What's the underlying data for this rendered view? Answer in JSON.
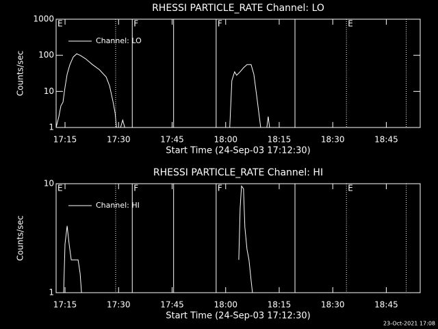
{
  "chart_data": [
    {
      "type": "line",
      "title": "RHESSI PARTICLE_RATE Channel: LO",
      "xlabel": "Start Time (24-Sep-03 17:12:30)",
      "ylabel": "Counts/sec",
      "log_y": true,
      "legend": "upper left",
      "xlim": [
        "17:12:30",
        "18:54:30"
      ],
      "ylim": [
        1,
        1000
      ],
      "xticks": [
        "17:15",
        "17:30",
        "17:45",
        "18:00",
        "18:15",
        "18:30",
        "18:45"
      ],
      "yticks": [
        1,
        10,
        100,
        1000
      ],
      "vertical_lines": [
        {
          "x": "17:29:10",
          "style": "dotted"
        },
        {
          "x": "17:33:50",
          "style": "solid"
        },
        {
          "x": "17:45:25",
          "style": "solid"
        },
        {
          "x": "17:57:20",
          "style": "solid"
        },
        {
          "x": "18:19:25",
          "style": "solid"
        },
        {
          "x": "18:33:50",
          "style": "dotted"
        },
        {
          "x": "18:50:35",
          "style": "dotted"
        }
      ],
      "annotations": [
        {
          "x": "17:12:30",
          "label": "E"
        },
        {
          "x": "17:33:50",
          "label": "F"
        },
        {
          "x": "17:57:20",
          "label": "F"
        },
        {
          "x": "18:33:50",
          "label": "E"
        }
      ],
      "x": [
        "17:12:30",
        "17:13:16",
        "17:13:51",
        "17:14:25",
        "17:15:00",
        "17:15:35",
        "17:16:21",
        "17:17:19",
        "17:18:16",
        "17:19:14",
        "17:20:46",
        "17:22:42",
        "17:24:37",
        "17:26:32",
        "17:27:30",
        "17:28:28",
        "17:29:02",
        "17:29:25",
        "17:30:00",
        "17:30:34",
        "17:31:09",
        "17:31:44",
        "17:50:00",
        "18:01:09",
        "18:01:44",
        "18:02:30",
        "18:03:05",
        "18:04:03",
        "18:05:00",
        "18:05:58",
        "18:07:07",
        "18:07:53",
        "18:08:39",
        "18:09:25",
        "18:09:48",
        "18:10:40",
        "18:11:32",
        "18:11:55",
        "18:12:18"
      ],
      "series": [
        {
          "name": "Channel: LO",
          "color": "#ffffff",
          "values": [
            1,
            2,
            4,
            5,
            13,
            30,
            55,
            90,
            110,
            100,
            80,
            55,
            40,
            25,
            14,
            5,
            2.5,
            1,
            null,
            1,
            1.6,
            1,
            null,
            1,
            20,
            35,
            28,
            35,
            45,
            55,
            55,
            30,
            8,
            2,
            1,
            null,
            1,
            2,
            1
          ]
        }
      ]
    },
    {
      "type": "line",
      "title": "RHESSI PARTICLE_RATE Channel: HI",
      "xlabel": "Start Time (24-Sep-03 17:12:30)",
      "ylabel": "Counts/sec",
      "log_y": true,
      "legend": "upper left",
      "xlim": [
        "17:12:30",
        "18:54:30"
      ],
      "ylim": [
        1,
        10
      ],
      "xticks": [
        "17:15",
        "17:30",
        "17:45",
        "18:00",
        "18:15",
        "18:30",
        "18:45"
      ],
      "yticks": [
        1,
        10
      ],
      "vertical_lines": [
        {
          "x": "17:29:10",
          "style": "dotted"
        },
        {
          "x": "17:33:50",
          "style": "solid"
        },
        {
          "x": "17:45:25",
          "style": "solid"
        },
        {
          "x": "17:57:20",
          "style": "solid"
        },
        {
          "x": "18:19:25",
          "style": "solid"
        },
        {
          "x": "18:33:50",
          "style": "dotted"
        },
        {
          "x": "18:50:35",
          "style": "dotted"
        }
      ],
      "annotations": [
        {
          "x": "17:12:30",
          "label": "E"
        },
        {
          "x": "17:33:50",
          "label": "F"
        },
        {
          "x": "17:57:20",
          "label": "F"
        },
        {
          "x": "18:33:50",
          "label": "E"
        }
      ],
      "x": [
        "17:14:37",
        "17:15:00",
        "17:15:35",
        "17:16:09",
        "17:16:44",
        "17:17:53",
        "17:18:39",
        "17:19:14",
        "17:19:37",
        "17:40:00",
        "18:03:40",
        "18:04:03",
        "18:04:26",
        "18:05:00",
        "18:05:23",
        "18:05:58",
        "18:06:32",
        "18:07:07",
        "18:07:30"
      ],
      "series": [
        {
          "name": "Channel: HI",
          "color": "#ffffff",
          "values": [
            1,
            2.8,
            4.1,
            2.8,
            2,
            2,
            2,
            1.5,
            1,
            null,
            2,
            6,
            9.5,
            9,
            4,
            2.5,
            2,
            1.3,
            1
          ]
        }
      ]
    }
  ],
  "footer": "23-Oct-2021 17:08"
}
